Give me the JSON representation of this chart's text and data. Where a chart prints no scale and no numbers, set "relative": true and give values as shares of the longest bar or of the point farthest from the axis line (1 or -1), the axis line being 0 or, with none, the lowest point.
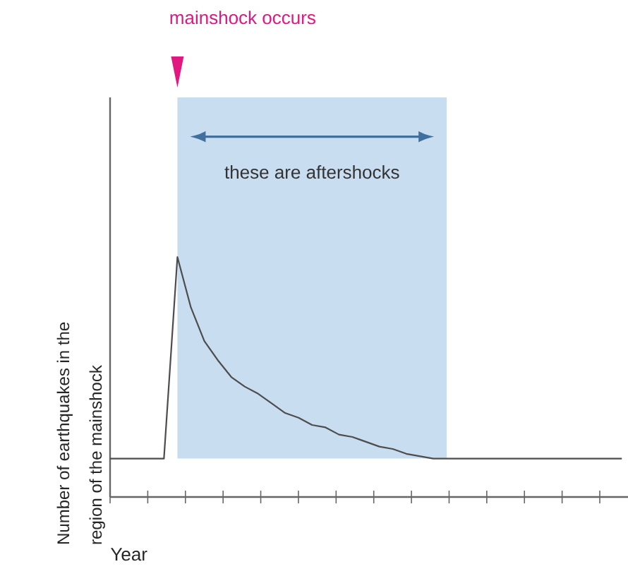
{
  "chart_data": {
    "type": "line",
    "relative": true,
    "xlabel": "Year",
    "ylabel": "Number of earthquakes in the region of the mainshock",
    "categories": [
      null,
      null,
      null,
      null,
      null,
      null,
      null,
      null,
      null,
      null,
      null,
      null,
      null,
      null,
      null,
      null,
      null,
      null,
      null,
      null,
      null,
      null,
      null,
      null,
      null,
      null,
      null,
      null,
      null,
      null,
      null,
      null,
      null,
      null,
      null,
      null,
      null,
      null,
      null
    ],
    "series": [
      {
        "color": "#4d4d4d",
        "values": [
          0.16,
          0.16,
          0.16,
          0.16,
          0.16,
          1,
          0.79,
          0.65,
          0.57,
          0.5,
          0.46,
          0.43,
          0.39,
          0.35,
          0.33,
          0.3,
          0.29,
          0.26,
          0.25,
          0.23,
          0.21,
          0.2,
          0.18,
          0.17,
          0.16,
          0.16,
          0.16,
          0.16,
          0.16,
          0.16,
          0.16,
          0.16,
          0.16,
          0.16,
          0.16,
          0.16,
          0.16,
          0.16,
          0.16
        ]
      }
    ],
    "annotations": [
      "mainshock occurs",
      "these are aftershocks"
    ]
  }
}
